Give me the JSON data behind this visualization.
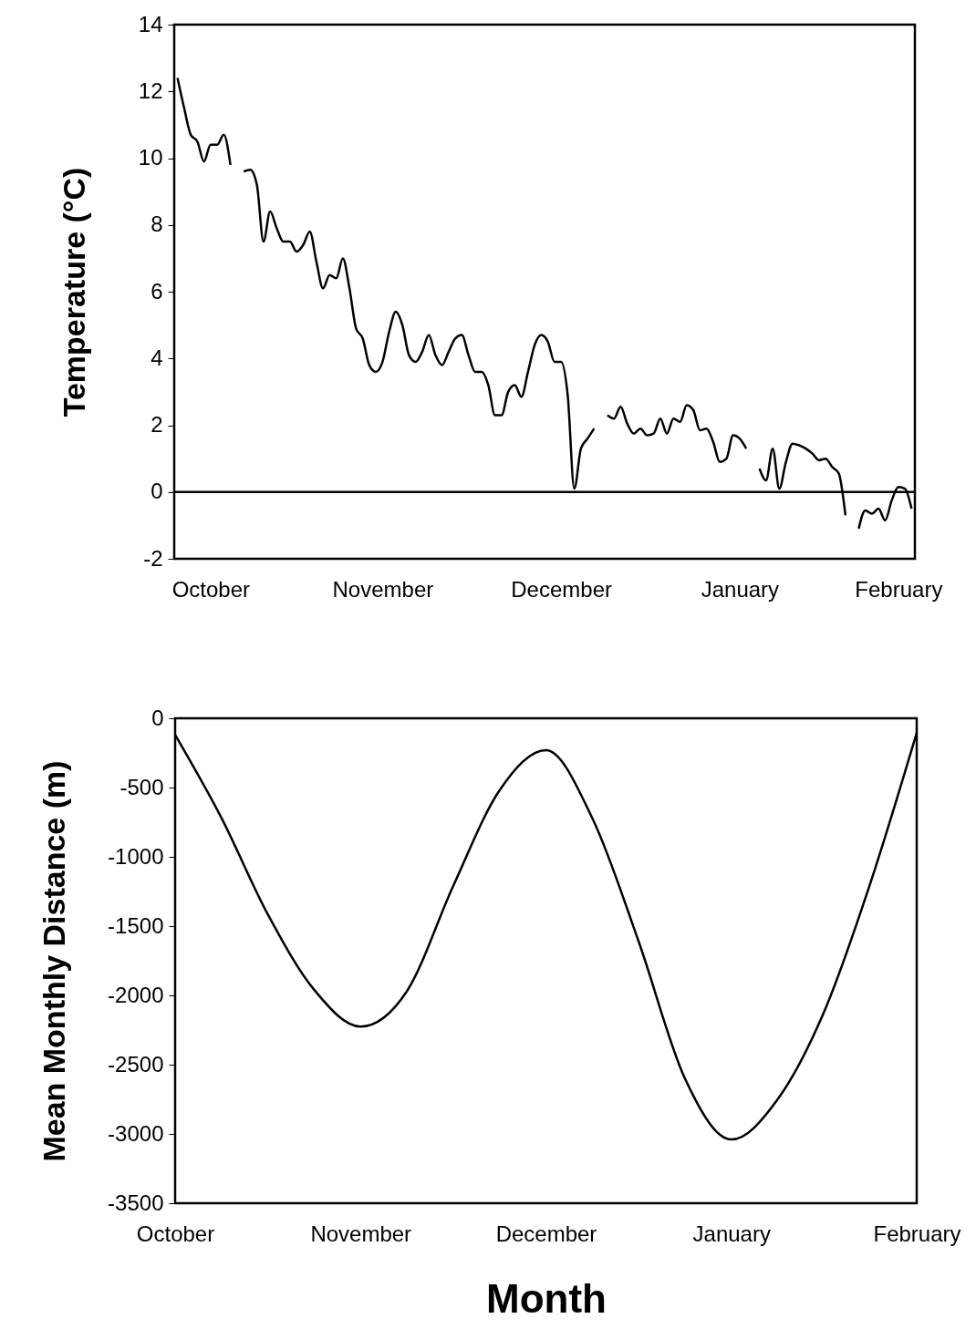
{
  "chart_data": [
    {
      "type": "line",
      "ylabel": "Temperature (°C)",
      "ylim": [
        -2,
        14
      ],
      "yticks": [
        -2,
        0,
        2,
        4,
        6,
        8,
        10,
        12,
        14
      ],
      "ref_lines": [
        {
          "axis": "y",
          "value": 0,
          "color": "#000000"
        }
      ],
      "categories": [
        null,
        null,
        null,
        null,
        null,
        "October",
        null,
        null,
        null,
        null,
        null,
        null,
        null,
        null,
        null,
        null,
        null,
        null,
        null,
        null,
        null,
        null,
        null,
        null,
        null,
        null,
        null,
        null,
        null,
        null,
        null,
        "November",
        null,
        null,
        null,
        null,
        null,
        null,
        null,
        null,
        null,
        null,
        null,
        null,
        null,
        null,
        null,
        null,
        null,
        null,
        null,
        null,
        null,
        null,
        null,
        null,
        null,
        null,
        "December",
        null,
        null,
        null,
        null,
        null,
        null,
        null,
        null,
        null,
        null,
        null,
        null,
        null,
        null,
        null,
        null,
        null,
        null,
        null,
        null,
        null,
        null,
        null,
        null,
        null,
        null,
        "January",
        null,
        null,
        null,
        null,
        null,
        null,
        null,
        null,
        null,
        null,
        null,
        null,
        null,
        null,
        null,
        null,
        null,
        null,
        null,
        null,
        null,
        null,
        null,
        "February",
        null,
        null
      ],
      "series": [
        {
          "color": "#000000",
          "values": [
            12.4,
            11.5,
            10.7,
            10.5,
            9.9,
            10.4,
            10.4,
            10.7,
            9.8,
            null,
            9.6,
            9.65,
            9.2,
            7.5,
            8.4,
            7.9,
            7.5,
            7.5,
            7.2,
            7.4,
            7.8,
            6.9,
            6.1,
            6.5,
            6.4,
            7.0,
            6.1,
            4.9,
            4.6,
            3.8,
            3.6,
            3.9,
            4.8,
            5.4,
            5.0,
            4.1,
            3.9,
            4.2,
            4.7,
            4.1,
            3.8,
            4.2,
            4.6,
            4.7,
            4.1,
            3.6,
            3.6,
            3.2,
            2.3,
            2.3,
            3.0,
            3.2,
            2.85,
            3.6,
            4.4,
            4.7,
            4.5,
            3.9,
            3.9,
            2.9,
            0.1,
            1.3,
            1.6,
            1.9,
            null,
            2.3,
            2.2,
            2.55,
            2.05,
            1.75,
            1.9,
            1.7,
            1.75,
            2.2,
            1.75,
            2.2,
            2.1,
            2.6,
            2.45,
            1.85,
            1.9,
            1.5,
            0.9,
            1.0,
            1.7,
            1.6,
            1.3,
            null,
            0.7,
            0.35,
            1.3,
            0.1,
            0.9,
            1.45,
            1.4,
            1.3,
            1.15,
            0.95,
            1.0,
            0.75,
            0.55,
            -0.7,
            null,
            -1.1,
            -0.55,
            -0.65,
            -0.5,
            -0.85,
            -0.25,
            0.15,
            0.1,
            -0.5
          ]
        }
      ]
    },
    {
      "type": "line",
      "xlabel": "Month",
      "ylabel": "Mean Monthly Distance (m)",
      "ylim": [
        -3500,
        0
      ],
      "yticks": [
        -3500,
        -3000,
        -2500,
        -2000,
        -1500,
        -1000,
        -500,
        0
      ],
      "categories": [
        "October",
        null,
        null,
        null,
        "November",
        null,
        null,
        null,
        "December",
        null,
        null,
        null,
        "January",
        null,
        null,
        null,
        "February"
      ],
      "series": [
        {
          "color": "#000000",
          "values": [
            -120,
            -720,
            -1415,
            -1960,
            -2225,
            -1970,
            -1210,
            -520,
            -230,
            -720,
            -1610,
            -2600,
            -3040,
            -2750,
            -2120,
            -1190,
            -105
          ]
        }
      ]
    }
  ]
}
